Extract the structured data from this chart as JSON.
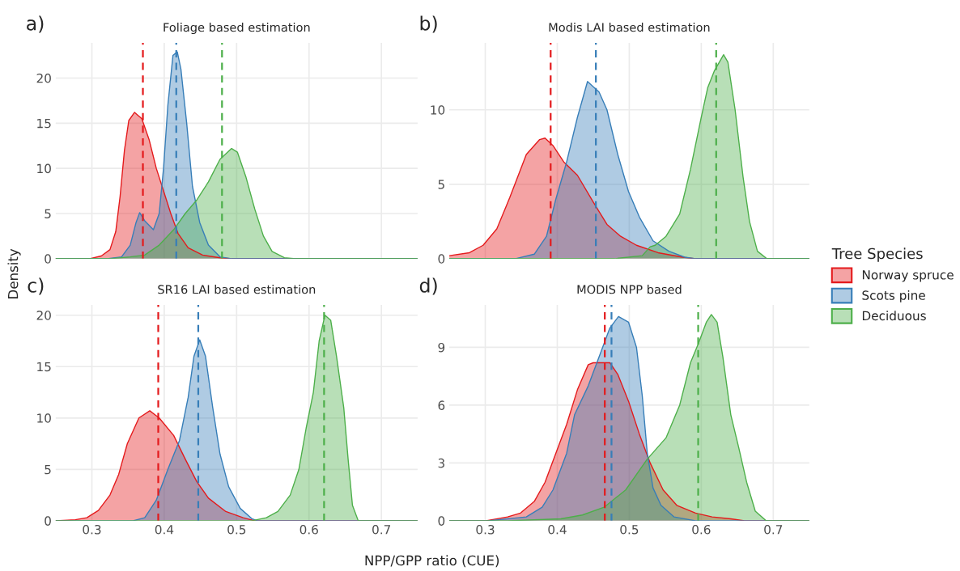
{
  "chart_data": [
    {
      "type": "area",
      "title": "Foliage based estimation",
      "annotations": [
        "a)"
      ],
      "xlim": [
        0.25,
        0.75
      ],
      "xticks": [
        0.3,
        0.4,
        0.5,
        0.6,
        0.7
      ],
      "ylim": [
        0,
        23.9
      ],
      "yticks": [
        0,
        5,
        10,
        15,
        20
      ],
      "tick_labels": "y",
      "grid": true,
      "legend": "right",
      "legend_title": "Tree Species",
      "series": [
        {
          "name": "Norway spruce",
          "color": "#e41a1c",
          "x": [
            0.25,
            0.297,
            0.313,
            0.325,
            0.333,
            0.339,
            0.345,
            0.351,
            0.359,
            0.369,
            0.379,
            0.389,
            0.399,
            0.409,
            0.419,
            0.433,
            0.453,
            0.477,
            0.493,
            0.75
          ],
          "values": [
            0,
            0,
            0.3,
            1,
            3,
            6.9,
            12,
            15.3,
            16.2,
            15.5,
            13.2,
            10,
            7.5,
            5,
            2.8,
            1.2,
            0.4,
            0.1,
            0,
            0
          ]
        },
        {
          "name": "Scots pine",
          "color": "#377eb8",
          "x": [
            0.25,
            0.321,
            0.341,
            0.353,
            0.361,
            0.366,
            0.373,
            0.385,
            0.393,
            0.399,
            0.405,
            0.412,
            0.418,
            0.423,
            0.431,
            0.439,
            0.449,
            0.461,
            0.477,
            0.493,
            0.75
          ],
          "values": [
            0,
            0,
            0.2,
            1.5,
            4,
            5.1,
            4.2,
            3.2,
            5,
            10,
            17,
            22.5,
            22.9,
            21,
            15,
            8,
            4,
            1.5,
            0.2,
            0,
            0
          ]
        },
        {
          "name": "Deciduous",
          "color": "#4daf4a",
          "x": [
            0.25,
            0.325,
            0.353,
            0.373,
            0.393,
            0.413,
            0.429,
            0.445,
            0.461,
            0.477,
            0.493,
            0.501,
            0.513,
            0.525,
            0.537,
            0.549,
            0.566,
            0.582,
            0.75
          ],
          "values": [
            0,
            0,
            0.2,
            0.4,
            1.5,
            3.2,
            5,
            6.5,
            8.5,
            11,
            12.2,
            11.8,
            9,
            5.5,
            2.5,
            0.8,
            0.1,
            0,
            0
          ]
        }
      ],
      "ref_lines": [
        {
          "axis": "x",
          "value": 0.3705,
          "color": "#e41a1c",
          "line_style": "dashed"
        },
        {
          "axis": "x",
          "value": 0.4166,
          "color": "#377eb8",
          "line_style": "dashed"
        },
        {
          "axis": "x",
          "value": 0.4798,
          "color": "#4daf4a",
          "line_style": "dashed"
        }
      ]
    },
    {
      "type": "area",
      "title": "Modis LAI based estimation",
      "annotations": [
        "b)"
      ],
      "xlim": [
        0.25,
        0.75
      ],
      "xticks": [
        0.3,
        0.4,
        0.5,
        0.6,
        0.7
      ],
      "ylim": [
        0,
        14.5
      ],
      "yticks": [
        0,
        5,
        10
      ],
      "tick_labels": "y",
      "grid": true,
      "series": [
        {
          "color": "#e41a1c",
          "x": [
            0.25,
            0.278,
            0.297,
            0.316,
            0.334,
            0.357,
            0.3755,
            0.383,
            0.394,
            0.409,
            0.428,
            0.45,
            0.469,
            0.488,
            0.51,
            0.54,
            0.574,
            0.592,
            0.75
          ],
          "values": [
            0.2,
            0.4,
            0.9,
            2,
            4.1,
            7,
            8,
            8.1,
            7.6,
            6.5,
            5.6,
            3.8,
            2.3,
            1.5,
            0.9,
            0.4,
            0.1,
            0,
            0
          ]
        },
        {
          "color": "#377eb8",
          "x": [
            0.25,
            0.342,
            0.368,
            0.385,
            0.398,
            0.413,
            0.428,
            0.442,
            0.458,
            0.469,
            0.484,
            0.499,
            0.514,
            0.533,
            0.555,
            0.577,
            0.592,
            0.75
          ],
          "values": [
            0,
            0,
            0.3,
            1.5,
            4,
            6.5,
            9.5,
            11.9,
            11.2,
            10,
            7,
            4.5,
            2.8,
            1.2,
            0.5,
            0.1,
            0,
            0
          ]
        },
        {
          "color": "#4daf4a",
          "x": [
            0.25,
            0.48,
            0.518,
            0.529,
            0.536,
            0.551,
            0.57,
            0.585,
            0.6,
            0.609,
            0.618,
            0.631,
            0.637,
            0.647,
            0.658,
            0.667,
            0.678,
            0.691,
            0.75
          ],
          "values": [
            0,
            0,
            0.2,
            0.8,
            0.9,
            1.5,
            3,
            6,
            9.5,
            11.5,
            12.6,
            13.7,
            13.2,
            10,
            5.5,
            2.5,
            0.5,
            0,
            0
          ]
        }
      ],
      "ref_lines": [
        {
          "axis": "x",
          "value": 0.3908,
          "color": "#e41a1c",
          "line_style": "dashed"
        },
        {
          "axis": "x",
          "value": 0.4536,
          "color": "#377eb8",
          "line_style": "dashed"
        },
        {
          "axis": "x",
          "value": 0.6207,
          "color": "#4daf4a",
          "line_style": "dashed"
        }
      ]
    },
    {
      "type": "area",
      "title": "SR16 LAI based estimation",
      "annotations": [
        "c)"
      ],
      "xlabel": "NPP/GPP ratio (CUE)",
      "ylabel": "Density",
      "xlim": [
        0.25,
        0.75
      ],
      "xticks": [
        0.3,
        0.4,
        0.5,
        0.6,
        0.7
      ],
      "ylim": [
        0,
        21
      ],
      "yticks": [
        0,
        5,
        10,
        15,
        20
      ],
      "grid": true,
      "series": [
        {
          "color": "#e41a1c",
          "x": [
            0.25,
            0.277,
            0.293,
            0.309,
            0.325,
            0.337,
            0.349,
            0.365,
            0.38,
            0.393,
            0.413,
            0.429,
            0.445,
            0.461,
            0.485,
            0.509,
            0.525,
            0.75
          ],
          "values": [
            0,
            0.1,
            0.3,
            1,
            2.5,
            4.5,
            7.5,
            10,
            10.7,
            10,
            8.3,
            6,
            3.8,
            2.2,
            0.9,
            0.3,
            0,
            0
          ]
        },
        {
          "color": "#377eb8",
          "x": [
            0.25,
            0.357,
            0.373,
            0.389,
            0.405,
            0.421,
            0.433,
            0.441,
            0.449,
            0.457,
            0.467,
            0.477,
            0.489,
            0.505,
            0.521,
            0.529,
            0.75
          ],
          "values": [
            0,
            0,
            0.3,
            2,
            5,
            7.8,
            12,
            16,
            17.6,
            16,
            11,
            6.5,
            3.3,
            1.2,
            0.2,
            0,
            0
          ]
        },
        {
          "color": "#4daf4a",
          "x": [
            0.25,
            0.521,
            0.541,
            0.557,
            0.574,
            0.586,
            0.596,
            0.606,
            0.614,
            0.622,
            0.63,
            0.638,
            0.648,
            0.654,
            0.66,
            0.668,
            0.75
          ],
          "values": [
            0,
            0,
            0.3,
            0.9,
            2.5,
            5,
            9,
            12.5,
            17.5,
            20,
            19.5,
            16,
            11,
            6,
            1.5,
            0,
            0
          ]
        }
      ],
      "ref_lines": [
        {
          "axis": "x",
          "value": 0.3917,
          "color": "#e41a1c",
          "line_style": "dashed"
        },
        {
          "axis": "x",
          "value": 0.447,
          "color": "#377eb8",
          "line_style": "dashed"
        },
        {
          "axis": "x",
          "value": 0.6208,
          "color": "#4daf4a",
          "line_style": "dashed"
        }
      ]
    },
    {
      "type": "area",
      "title": "MODIS NPP based",
      "annotations": [
        "d)"
      ],
      "xlim": [
        0.25,
        0.75
      ],
      "xticks": [
        0.3,
        0.4,
        0.5,
        0.6,
        0.7
      ],
      "ylim": [
        0,
        11.2
      ],
      "yticks": [
        0,
        3,
        6,
        9
      ],
      "grid": true,
      "series": [
        {
          "color": "#e41a1c",
          "x": [
            0.25,
            0.301,
            0.331,
            0.349,
            0.368,
            0.383,
            0.398,
            0.413,
            0.428,
            0.443,
            0.45,
            0.473,
            0.484,
            0.499,
            0.514,
            0.529,
            0.547,
            0.566,
            0.592,
            0.615,
            0.641,
            0.66,
            0.75
          ],
          "values": [
            0,
            0,
            0.2,
            0.4,
            1,
            2,
            3.5,
            5,
            6.8,
            8.1,
            8.2,
            8.2,
            7.6,
            6.2,
            4.5,
            3,
            1.6,
            0.8,
            0.4,
            0.2,
            0.1,
            0,
            0
          ]
        },
        {
          "color": "#377eb8",
          "x": [
            0.25,
            0.304,
            0.357,
            0.379,
            0.394,
            0.413,
            0.424,
            0.443,
            0.461,
            0.473,
            0.485,
            0.499,
            0.51,
            0.518,
            0.525,
            0.533,
            0.544,
            0.562,
            0.592,
            0.75
          ],
          "values": [
            0,
            0,
            0.2,
            0.7,
            1.6,
            3.5,
            5.5,
            7,
            8.8,
            10,
            10.6,
            10.3,
            9,
            6.5,
            3.5,
            1.7,
            0.8,
            0.2,
            0,
            0
          ]
        },
        {
          "color": "#4daf4a",
          "x": [
            0.25,
            0.331,
            0.405,
            0.435,
            0.465,
            0.495,
            0.525,
            0.551,
            0.57,
            0.585,
            0.596,
            0.607,
            0.614,
            0.622,
            0.63,
            0.641,
            0.652,
            0.663,
            0.675,
            0.69,
            0.75
          ],
          "values": [
            0,
            0,
            0.1,
            0.3,
            0.7,
            1.6,
            3.2,
            4.3,
            6,
            8.2,
            9.2,
            10.3,
            10.7,
            10.3,
            8.5,
            5.5,
            3.8,
            2,
            0.5,
            0,
            0
          ]
        }
      ],
      "ref_lines": [
        {
          "axis": "x",
          "value": 0.466,
          "color": "#e41a1c",
          "line_style": "dashed"
        },
        {
          "axis": "x",
          "value": 0.4753,
          "color": "#377eb8",
          "line_style": "dashed"
        },
        {
          "axis": "x",
          "value": 0.5957,
          "color": "#4daf4a",
          "line_style": "dashed"
        }
      ]
    }
  ]
}
